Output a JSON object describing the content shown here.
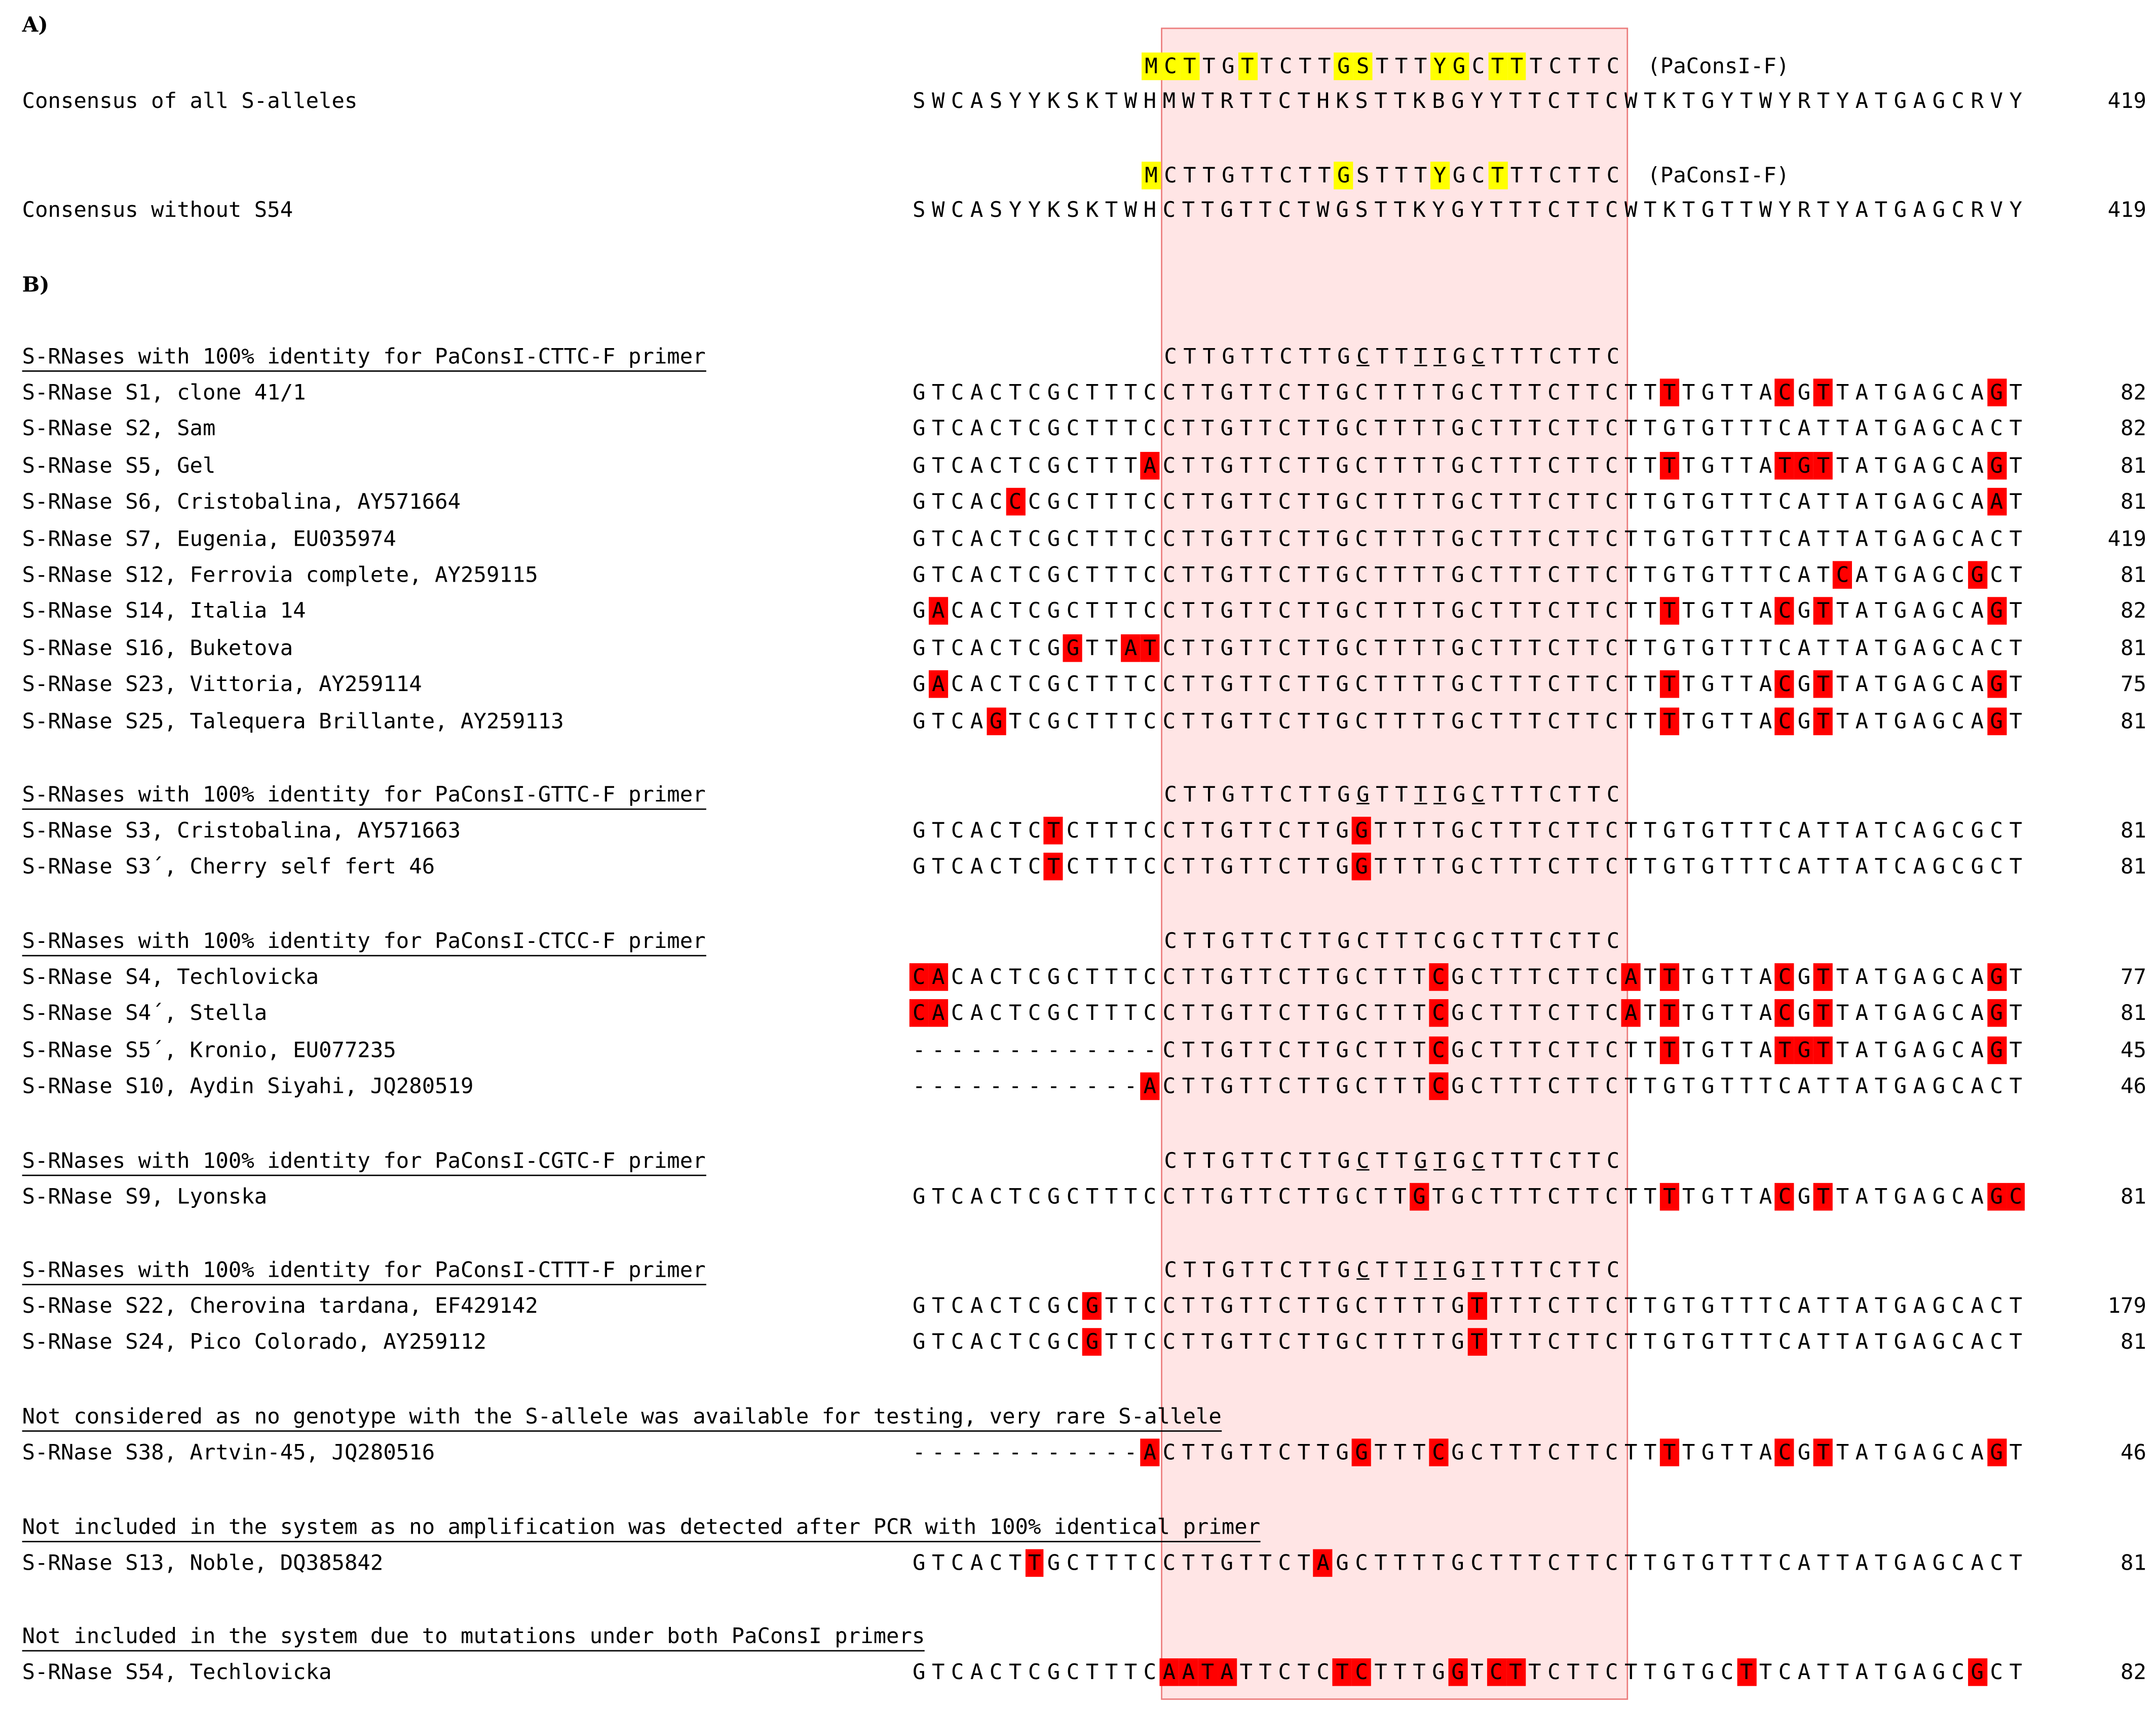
{
  "sections": {
    "a_label": "A)",
    "b_label": "B)"
  },
  "panel_a": {
    "rows": [
      {
        "primer": "MCTTGTTCTTGSTTTYGCTTTCTTC",
        "primer_hl": [
          0,
          1,
          2,
          5,
          10,
          11,
          15,
          16,
          18,
          19
        ],
        "primer_label": "(PaConsI-F)",
        "label": "Consensus of all S-alleles",
        "seq": "SWCASYYKSKTWHMWTRTTCTHKSTTKBGYYTTCTTCWTKTGYTWYRTYATGAGCRVY",
        "num": "419"
      },
      {
        "primer": "MCTTGTTCTTGSTTTYGCTTTCTTC",
        "primer_hl": [
          0,
          10,
          15,
          18
        ],
        "primer_label": "(PaConsI-F)",
        "label": "Consensus without S54",
        "seq": "SWCASYYKSKTWHCTTGTTCTWGSTTKYGYTTTCTTCWTKTGTTWYRTYATGAGCRVY",
        "num": "419"
      }
    ]
  },
  "groups": [
    {
      "title": "S-RNases with 100% identity for PaConsI-CTTC-F primer",
      "primer": "CTTGTTCTTGCTTTTGCTTTCTTC",
      "primer_ul": [
        10,
        13,
        14,
        16
      ],
      "rows": [
        {
          "label": "S-RNase S1, clone 41/1",
          "seq": "GTCACTCGCTTTCCTTGTTCTTGCTTTTGCTTTCTTCTTTTGTTACGTTATGAGCAGT",
          "red": [
            39,
            45,
            47,
            56
          ],
          "num": "82"
        },
        {
          "label": "S-RNase S2, Sam",
          "seq": "GTCACTCGCTTTCCTTGTTCTTGCTTTTGCTTTCTTCTTGTGTTTCATTATGAGCACT",
          "red": [],
          "num": "82"
        },
        {
          "label": "S-RNase S5, Gel",
          "seq": "GTCACTCGCTTTACTTGTTCTTGCTTTTGCTTTCTTCTTTTGTTATGTTATGAGCAGT",
          "red": [
            12,
            39,
            45,
            46,
            47,
            56
          ],
          "num": "81"
        },
        {
          "label": "S-RNase S6, Cristobalina, AY571664",
          "seq": "GTCACCCGCTTTCCTTGTTCTTGCTTTTGCTTTCTTCTTGTGTTTCATTATGAGCAAT",
          "red": [
            5,
            56
          ],
          "num": "81"
        },
        {
          "label": "S-RNase S7, Eugenia, EU035974",
          "seq": "GTCACTCGCTTTCCTTGTTCTTGCTTTTGCTTTCTTCTTGTGTTTCATTATGAGCACT",
          "red": [],
          "num": "419"
        },
        {
          "label": "S-RNase S12, Ferrovia complete, AY259115",
          "seq": "GTCACTCGCTTTCCTTGTTCTTGCTTTTGCTTTCTTCTTGTGTTTCATCATGAGCGCT",
          "red": [
            48,
            55
          ],
          "num": "81"
        },
        {
          "label": "S-RNase S14, Italia 14",
          "seq": "GACACTCGCTTTCCTTGTTCTTGCTTTTGCTTTCTTCTTTTGTTACGTTATGAGCAGT",
          "red": [
            1,
            39,
            45,
            47,
            56
          ],
          "num": "82"
        },
        {
          "label": "S-RNase S16, Buketova",
          "seq": "GTCACTCGGTTATCTTGTTCTTGCTTTTGCTTTCTTCTTGTGTTTCATTATGAGCACT",
          "red": [
            8,
            11,
            12
          ],
          "num": "81"
        },
        {
          "label": "S-RNase S23, Vittoria, AY259114",
          "seq": "GACACTCGCTTTCCTTGTTCTTGCTTTTGCTTTCTTCTTTTGTTACGTTATGAGCAGT",
          "red": [
            1,
            39,
            45,
            47,
            56
          ],
          "num": "75"
        },
        {
          "label": "S-RNase S25, Talequera Brillante, AY259113",
          "seq": "GTCAGTCGCTTTCCTTGTTCTTGCTTTTGCTTTCTTCTTTTGTTACGTTATGAGCAGT",
          "red": [
            4,
            39,
            45,
            47,
            56
          ],
          "num": "81"
        }
      ]
    },
    {
      "title": "S-RNases with 100% identity for PaConsI-GTTC-F primer",
      "primer": "CTTGTTCTTGGTTTTGCTTTCTTC",
      "primer_ul": [
        10,
        13,
        14,
        16
      ],
      "rows": [
        {
          "label": "S-RNase S3, Cristobalina, AY571663",
          "seq": "GTCACTCTCTTTCCTTGTTCTTGGTTTTGCTTTCTTCTTGTGTTTCATTATCAGCGCT",
          "red": [
            7,
            23
          ],
          "num": "81"
        },
        {
          "label": "S-RNase S3´, Cherry self fert 46",
          "seq": "GTCACTCTCTTTCCTTGTTCTTGGTTTTGCTTTCTTCTTGTGTTTCATTATCAGCGCT",
          "red": [
            7,
            23
          ],
          "num": "81"
        }
      ]
    },
    {
      "title": "S-RNases with 100% identity for PaConsI-CTCC-F primer",
      "primer": "CTTGTTCTTGCTTTCGCTTTCTTC",
      "primer_ul": [],
      "rows": [
        {
          "label": "S-RNase S4, Techlovicka",
          "seq": "CACACTCGCTTTCCTTGTTCTTGCTTTCGCTTTCTTCATTTGTTACGTTATGAGCAGT",
          "red": [
            0,
            1,
            27,
            37,
            39,
            45,
            47,
            56
          ],
          "num": "77"
        },
        {
          "label": "S-RNase S4´, Stella",
          "seq": "CACACTCGCTTTCCTTGTTCTTGCTTTCGCTTTCTTCATTTGTTACGTTATGAGCAGT",
          "red": [
            0,
            1,
            27,
            37,
            39,
            45,
            47,
            56
          ],
          "num": "81"
        },
        {
          "label": "S-RNase S5´, Kronio, EU077235",
          "seq": "-------------CTTGTTCTTGCTTTCGCTTTCTTCTTTTGTTATGTTATGAGCAGT",
          "red": [
            27,
            39,
            45,
            46,
            47,
            56
          ],
          "num": "45"
        },
        {
          "label": "S-RNase S10, Aydin Siyahi, JQ280519",
          "seq": "------------ACTTGTTCTTGCTTTCGCTTTCTTCTTGTGTTTCATTATGAGCACT",
          "red": [
            12,
            27
          ],
          "num": "46"
        }
      ]
    },
    {
      "title": "S-RNases with 100% identity for PaConsI-CGTC-F primer",
      "primer": "CTTGTTCTTGCTTGTGCTTTCTTC",
      "primer_ul": [
        10,
        13,
        14,
        16
      ],
      "rows": [
        {
          "label": "S-RNase S9, Lyonska",
          "seq": "GTCACTCGCTTTCCTTGTTCTTGCTTGTGCTTTCTTCTTTTGTTACGTTATGAGCAGC",
          "red": [
            26,
            39,
            45,
            47,
            56,
            57
          ],
          "num": "81"
        }
      ]
    },
    {
      "title": "S-RNases with 100% identity for PaConsI-CTTT-F primer",
      "primer": "CTTGTTCTTGCTTTTGTTTTCTTC",
      "primer_ul": [
        10,
        13,
        14,
        16
      ],
      "rows": [
        {
          "label": "S-RNase S22, Cherovina tardana, EF429142",
          "seq": "GTCACTCGCGTTCCTTGTTCTTGCTTTTGTTTTCTTCTTGTGTTTCATTATGAGCACT",
          "red": [
            9,
            29
          ],
          "num": "179"
        },
        {
          "label": "S-RNase S24, Pico Colorado, AY259112",
          "seq": "GTCACTCGCGTTCCTTGTTCTTGCTTTTGTTTTCTTCTTGTGTTTCATTATGAGCACT",
          "red": [
            9,
            29
          ],
          "num": "81"
        }
      ]
    },
    {
      "title": "Not considered as no genotype with the S-allele was available for testing, very rare S-allele",
      "rows": [
        {
          "label": "S-RNase S38, Artvin-45, JQ280516",
          "seq": "------------ACTTGTTCTTGGTTTCGCTTTCTTCTTTTGTTACGTTATGAGCAGT",
          "red": [
            12,
            23,
            27,
            39,
            45,
            47,
            56
          ],
          "num": "46"
        }
      ]
    },
    {
      "title": "Not included in the system as no amplification was detected after PCR with 100% identical primer",
      "rows": [
        {
          "label": "S-RNase S13, Noble, DQ385842",
          "seq": "GTCACTTGCTTTCCTTGTTCTAGCTTTTGCTTTCTTCTTGTGTTTCATTATGAGCACT",
          "red": [
            6,
            21
          ],
          "num": "81"
        }
      ]
    },
    {
      "title": "Not included in the system due to mutations under both PaConsI primers",
      "rows": [
        {
          "label": "S-RNase S54, Techlovicka",
          "seq": "GTCACTCGCTTTCAATATTCTCTCTTTGGTCTTCTTCTTGTGCTTCATTATGAGCGCT",
          "red": [
            13,
            14,
            15,
            16,
            22,
            23,
            28,
            30,
            31,
            43,
            55
          ],
          "num": "82"
        }
      ]
    }
  ]
}
